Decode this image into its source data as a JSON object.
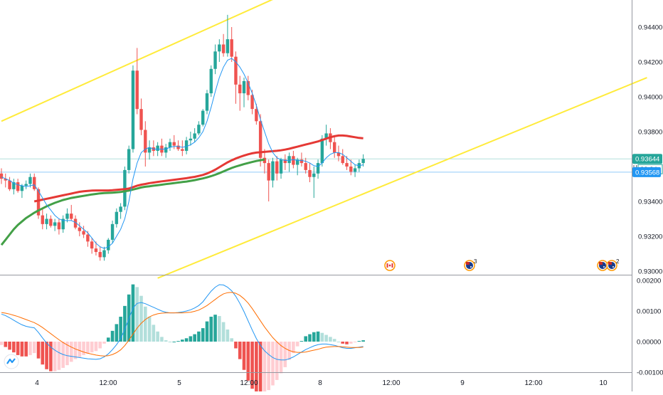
{
  "colors": {
    "up": "#26a69a",
    "down": "#ef5350",
    "macd_line": "#2196f3",
    "signal_line": "#ff6d00",
    "hist_up_strong": "#26a69a",
    "hist_up_weak": "#b2dfdb",
    "hist_down_strong": "#ef5350",
    "hist_down_weak": "#ffcdd2",
    "channel": "#ffeb3b",
    "ma_fast": "#2196f3",
    "ma_red": "#e53935",
    "ma_green": "#43a047",
    "axis_text": "#131722",
    "separator": "#9598a1",
    "tag_green": "#26a69a",
    "tag_blue": "#2196f3",
    "hline_green": "#b2dfdb",
    "hline_blue": "#90caf9"
  },
  "time_axis": {
    "labels": [
      "4",
      "12:00",
      "5",
      "12:00",
      "8",
      "12:00",
      "9",
      "12:00",
      "10"
    ]
  },
  "price_panel": {
    "ticks": [
      "0.94400",
      "0.94200",
      "0.94000",
      "0.93800",
      "0.93600",
      "0.93400",
      "0.93200",
      "0.93000"
    ],
    "last_price_label": "0.93644",
    "countdown_label": "32:34",
    "line_price_label": "0.93568",
    "side_marker": "U"
  },
  "macd_panel": {
    "ticks": [
      "0.00200",
      "0.00100",
      "0.00000",
      "-0.00100"
    ]
  },
  "events": [
    {
      "icon": "canada-flag-icon",
      "badge": ""
    },
    {
      "icon": "australia-flag-icon",
      "badge": "3"
    },
    {
      "icon": "australia-flag-icon",
      "badge": ""
    },
    {
      "icon": "australia-flag-icon",
      "badge": "2"
    }
  ],
  "chart_data": {
    "type": "candlestick",
    "symbol_unit": "price",
    "ylim": [
      0.929,
      0.9455
    ],
    "x_ticks": [
      "4",
      "12:00",
      "5",
      "12:00",
      "8",
      "12:00",
      "9",
      "12:00",
      "10"
    ],
    "ohlc": [
      [
        0.9356,
        0.9359,
        0.935,
        0.9353
      ],
      [
        0.9353,
        0.9356,
        0.9348,
        0.9352
      ],
      [
        0.9352,
        0.9354,
        0.9346,
        0.9347
      ],
      [
        0.9347,
        0.9353,
        0.9344,
        0.9351
      ],
      [
        0.9351,
        0.9353,
        0.9345,
        0.9346
      ],
      [
        0.9346,
        0.935,
        0.9342,
        0.9349
      ],
      [
        0.9349,
        0.9352,
        0.9347,
        0.935
      ],
      [
        0.935,
        0.9356,
        0.9348,
        0.9354
      ],
      [
        0.9354,
        0.9356,
        0.9346,
        0.9347
      ],
      [
        0.9347,
        0.9348,
        0.933,
        0.9332
      ],
      [
        0.9332,
        0.9336,
        0.9324,
        0.9327
      ],
      [
        0.9327,
        0.9333,
        0.9324,
        0.933
      ],
      [
        0.933,
        0.9332,
        0.9325,
        0.9326
      ],
      [
        0.9326,
        0.933,
        0.9323,
        0.9328
      ],
      [
        0.9328,
        0.933,
        0.9321,
        0.9324
      ],
      [
        0.9324,
        0.9332,
        0.9322,
        0.933
      ],
      [
        0.933,
        0.9336,
        0.9328,
        0.9333
      ],
      [
        0.9333,
        0.9338,
        0.9329,
        0.933
      ],
      [
        0.933,
        0.9332,
        0.9324,
        0.9325
      ],
      [
        0.9325,
        0.9328,
        0.932,
        0.9323
      ],
      [
        0.9323,
        0.9326,
        0.9319,
        0.9321
      ],
      [
        0.9321,
        0.9323,
        0.9314,
        0.9317
      ],
      [
        0.9317,
        0.9319,
        0.931,
        0.9313
      ],
      [
        0.9313,
        0.9317,
        0.9309,
        0.9311
      ],
      [
        0.9311,
        0.9314,
        0.9306,
        0.9308
      ],
      [
        0.9308,
        0.9314,
        0.9306,
        0.9312
      ],
      [
        0.9312,
        0.9319,
        0.931,
        0.9318
      ],
      [
        0.9318,
        0.9329,
        0.9316,
        0.9327
      ],
      [
        0.9327,
        0.9336,
        0.9325,
        0.9334
      ],
      [
        0.9334,
        0.9339,
        0.933,
        0.9337
      ],
      [
        0.9337,
        0.936,
        0.9335,
        0.9358
      ],
      [
        0.9358,
        0.9372,
        0.9356,
        0.937
      ],
      [
        0.937,
        0.9418,
        0.9368,
        0.9415
      ],
      [
        0.9415,
        0.9428,
        0.939,
        0.9393
      ],
      [
        0.9393,
        0.9399,
        0.9378,
        0.9381
      ],
      [
        0.9381,
        0.9386,
        0.936,
        0.9368
      ],
      [
        0.9368,
        0.9375,
        0.9364,
        0.9371
      ],
      [
        0.9371,
        0.9375,
        0.9366,
        0.9369
      ],
      [
        0.9369,
        0.9374,
        0.9366,
        0.9372
      ],
      [
        0.9372,
        0.9376,
        0.9366,
        0.9368
      ],
      [
        0.9368,
        0.9373,
        0.9365,
        0.9371
      ],
      [
        0.9371,
        0.9376,
        0.9369,
        0.9374
      ],
      [
        0.9374,
        0.9378,
        0.937,
        0.9372
      ],
      [
        0.9372,
        0.9375,
        0.9369,
        0.937
      ],
      [
        0.937,
        0.9375,
        0.9366,
        0.9369
      ],
      [
        0.9369,
        0.9377,
        0.9367,
        0.9375
      ],
      [
        0.9375,
        0.938,
        0.9372,
        0.9376
      ],
      [
        0.9376,
        0.9382,
        0.9374,
        0.9379
      ],
      [
        0.9379,
        0.9386,
        0.9378,
        0.9384
      ],
      [
        0.9384,
        0.9393,
        0.9383,
        0.9392
      ],
      [
        0.9392,
        0.9404,
        0.939,
        0.9402
      ],
      [
        0.9402,
        0.9418,
        0.94,
        0.9416
      ],
      [
        0.9416,
        0.943,
        0.9413,
        0.9426
      ],
      [
        0.9426,
        0.9433,
        0.942,
        0.943
      ],
      [
        0.943,
        0.9436,
        0.9423,
        0.9425
      ],
      [
        0.9425,
        0.9447,
        0.9423,
        0.9433
      ],
      [
        0.9433,
        0.944,
        0.942,
        0.9423
      ],
      [
        0.9423,
        0.9426,
        0.9396,
        0.9407
      ],
      [
        0.9407,
        0.9412,
        0.9392,
        0.9402
      ],
      [
        0.9402,
        0.9411,
        0.9394,
        0.9409
      ],
      [
        0.9409,
        0.9412,
        0.9398,
        0.9401
      ],
      [
        0.9401,
        0.9404,
        0.939,
        0.9393
      ],
      [
        0.9393,
        0.9396,
        0.9384,
        0.9386
      ],
      [
        0.9386,
        0.939,
        0.936,
        0.9365
      ],
      [
        0.9365,
        0.937,
        0.9356,
        0.9362
      ],
      [
        0.9362,
        0.9364,
        0.934,
        0.9352
      ],
      [
        0.9352,
        0.9365,
        0.9348,
        0.9363
      ],
      [
        0.9363,
        0.9366,
        0.9352,
        0.9356
      ],
      [
        0.9356,
        0.9365,
        0.9353,
        0.9364
      ],
      [
        0.9364,
        0.9367,
        0.9358,
        0.9362
      ],
      [
        0.9362,
        0.9368,
        0.9357,
        0.9366
      ],
      [
        0.9366,
        0.9369,
        0.9359,
        0.9361
      ],
      [
        0.9361,
        0.9365,
        0.9355,
        0.9364
      ],
      [
        0.9364,
        0.9368,
        0.936,
        0.9362
      ],
      [
        0.9362,
        0.9365,
        0.9356,
        0.9358
      ],
      [
        0.9358,
        0.9362,
        0.9351,
        0.9354
      ],
      [
        0.9354,
        0.936,
        0.9342,
        0.9356
      ],
      [
        0.9356,
        0.9364,
        0.9353,
        0.9362
      ],
      [
        0.9362,
        0.9378,
        0.936,
        0.9376
      ],
      [
        0.9376,
        0.9384,
        0.9372,
        0.9379
      ],
      [
        0.9379,
        0.9382,
        0.937,
        0.9374
      ],
      [
        0.9374,
        0.9378,
        0.9365,
        0.9368
      ],
      [
        0.9368,
        0.9372,
        0.9363,
        0.9366
      ],
      [
        0.9366,
        0.937,
        0.9361,
        0.9362
      ],
      [
        0.9362,
        0.9366,
        0.9358,
        0.936
      ],
      [
        0.936,
        0.9364,
        0.9355,
        0.9357
      ],
      [
        0.9357,
        0.9361,
        0.9354,
        0.9359
      ],
      [
        0.9359,
        0.9364,
        0.9357,
        0.9362
      ],
      [
        0.9362,
        0.9367,
        0.936,
        0.93644
      ]
    ],
    "ma_fast": [
      0.9354,
      0.9353,
      0.9352,
      0.93505,
      0.93495,
      0.9349,
      0.93485,
      0.9349,
      0.93495,
      0.9346,
      0.9342,
      0.9338,
      0.9335,
      0.9332,
      0.933,
      0.9329,
      0.9329,
      0.9329,
      0.9328,
      0.9326,
      0.9324,
      0.9322,
      0.9319,
      0.9316,
      0.9314,
      0.9313,
      0.9314,
      0.9316,
      0.932,
      0.9324,
      0.933,
      0.934,
      0.9353,
      0.9362,
      0.9368,
      0.937,
      0.9371,
      0.937,
      0.937,
      0.937,
      0.937,
      0.9371,
      0.93715,
      0.93715,
      0.9371,
      0.93715,
      0.93725,
      0.9374,
      0.93765,
      0.938,
      0.9386,
      0.9394,
      0.9403,
      0.9411,
      0.9417,
      0.9421,
      0.9422,
      0.942,
      0.9417,
      0.9413,
      0.9408,
      0.9402,
      0.9395,
      0.9387,
      0.938,
      0.9373,
      0.9368,
      0.9365,
      0.9364,
      0.93635,
      0.93635,
      0.9364,
      0.93635,
      0.93635,
      0.9363,
      0.9362,
      0.93605,
      0.936,
      0.9362,
      0.9365,
      0.9367,
      0.9368,
      0.9368,
      0.9367,
      0.9365,
      0.9363,
      0.9361,
      0.93605,
      0.9361
    ],
    "ma_red": [
      null,
      null,
      null,
      null,
      null,
      null,
      null,
      null,
      0.934,
      0.93405,
      0.9341,
      0.93415,
      0.9342,
      0.93425,
      0.9343,
      0.93435,
      0.9344,
      0.93445,
      0.9345,
      0.93455,
      0.93458,
      0.9346,
      0.93462,
      0.93463,
      0.93463,
      0.93463,
      0.93463,
      0.93464,
      0.93466,
      0.93468,
      0.9347,
      0.93474,
      0.93482,
      0.9349,
      0.93496,
      0.935,
      0.93505,
      0.93508,
      0.93512,
      0.93515,
      0.93518,
      0.93521,
      0.93524,
      0.93527,
      0.9353,
      0.93533,
      0.93537,
      0.93541,
      0.93546,
      0.93552,
      0.9356,
      0.9357,
      0.93582,
      0.93596,
      0.9361,
      0.93624,
      0.93636,
      0.93646,
      0.93655,
      0.93663,
      0.9367,
      0.93676,
      0.9368,
      0.93682,
      0.93684,
      0.93686,
      0.93688,
      0.9369,
      0.93693,
      0.93697,
      0.93702,
      0.93708,
      0.93714,
      0.9372,
      0.93726,
      0.93732,
      0.93738,
      0.93744,
      0.93752,
      0.9376,
      0.93768,
      0.93774,
      0.93778,
      0.93778,
      0.93776,
      0.93772,
      0.93768,
      0.93764,
      0.93762
    ],
    "ma_green": [
      0.9315,
      0.9318,
      0.9321,
      0.9324,
      0.93265,
      0.93285,
      0.93305,
      0.9332,
      0.93335,
      0.93348,
      0.9336,
      0.93372,
      0.93382,
      0.93392,
      0.934,
      0.93408,
      0.93414,
      0.9342,
      0.93424,
      0.93428,
      0.93432,
      0.93436,
      0.9344,
      0.93443,
      0.93446,
      0.93448,
      0.93449,
      0.9345,
      0.93452,
      0.93454,
      0.93458,
      0.93462,
      0.93468,
      0.93474,
      0.9348,
      0.93484,
      0.93487,
      0.9349,
      0.93493,
      0.93496,
      0.93499,
      0.93502,
      0.93505,
      0.93508,
      0.93511,
      0.93514,
      0.93518,
      0.93522,
      0.93527,
      0.93532,
      0.93538,
      0.93545,
      0.93553,
      0.93562,
      0.93572,
      0.93582,
      0.93592,
      0.936,
      0.93607,
      0.93614,
      0.9362,
      0.93626,
      0.93632,
      0.93636,
      0.9364
    ],
    "channel_upper": [
      {
        "from": [
          0,
          0.9386
        ],
        "to": [
          68,
          0.9458
        ]
      }
    ],
    "channel_lower": [
      {
        "from": [
          38,
          0.9296
        ],
        "to": [
          157,
          0.9411
        ]
      }
    ],
    "price_lines": [
      0.93644,
      0.93568
    ],
    "macd": {
      "ylim": [
        -0.00115,
        0.00225
      ],
      "macd": [
        0.0009,
        0.00085,
        0.00078,
        0.0007,
        0.00062,
        0.00055,
        0.0005,
        0.00047,
        0.00045,
        0.0003,
        0.00012,
        -5e-05,
        -0.00018,
        -0.00028,
        -0.00036,
        -0.00042,
        -0.00046,
        -0.00048,
        -0.0005,
        -0.00052,
        -0.00054,
        -0.00056,
        -0.00057,
        -0.00058,
        -0.00056,
        -0.0005,
        -0.0004,
        -0.00026,
        -0.0001,
        0.0001,
        0.0004,
        0.00075,
        0.0011,
        0.00125,
        0.00128,
        0.00124,
        0.00118,
        0.00112,
        0.00106,
        0.001,
        0.00096,
        0.00094,
        0.00094,
        0.00095,
        0.00097,
        0.001,
        0.00104,
        0.0011,
        0.00118,
        0.0013,
        0.00148,
        0.00165,
        0.00178,
        0.00186,
        0.00185,
        0.00178,
        0.00166,
        0.00148,
        0.00125,
        0.00098,
        0.00068,
        0.00038,
        0.0001,
        -0.00012,
        -0.0003,
        -0.00042,
        -0.00052,
        -0.00058,
        -0.0006,
        -0.0006,
        -0.00056,
        -0.0005,
        -0.00042,
        -0.00034,
        -0.00026,
        -0.0002,
        -0.00014,
        -0.0001,
        -8e-05,
        -8e-05,
        -0.0001,
        -0.00012,
        -0.00016,
        -0.0002,
        -0.00022,
        -0.00022,
        -0.0002,
        -0.00018,
        -0.00016
      ],
      "signal": [
        0.00095,
        0.00093,
        0.0009,
        0.00086,
        0.00082,
        0.00077,
        0.00072,
        0.00067,
        0.00062,
        0.00055,
        0.00046,
        0.00036,
        0.00026,
        0.00016,
        6e-05,
        -3e-05,
        -0.00011,
        -0.00018,
        -0.00024,
        -0.00029,
        -0.00034,
        -0.00038,
        -0.00041,
        -0.00044,
        -0.00046,
        -0.00047,
        -0.00046,
        -0.00042,
        -0.00036,
        -0.00027,
        -0.00013,
        5e-05,
        0.00025,
        0.00044,
        0.0006,
        0.00072,
        0.00081,
        0.00087,
        0.00091,
        0.00093,
        0.00094,
        0.00094,
        0.00094,
        0.00094,
        0.00094,
        0.00095,
        0.00096,
        0.00099,
        0.00103,
        0.0011,
        0.00118,
        0.00128,
        0.00138,
        0.00148,
        0.00156,
        0.0016,
        0.00161,
        0.00158,
        0.00151,
        0.0014,
        0.00126,
        0.00108,
        0.00088,
        0.00068,
        0.00048,
        0.0003,
        0.00013,
        -1e-05,
        -0.00013,
        -0.00022,
        -0.00029,
        -0.00033,
        -0.00035,
        -0.00035,
        -0.00034,
        -0.00031,
        -0.00028,
        -0.00025,
        -0.00021,
        -0.00018,
        -0.00017,
        -0.00016,
        -0.00016,
        -0.00017,
        -0.00018,
        -0.00019,
        -0.00019,
        -0.00019,
        -0.00018
      ]
    }
  }
}
